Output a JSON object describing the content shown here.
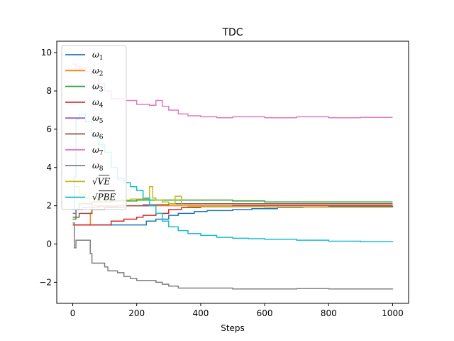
{
  "chart_data": {
    "type": "line",
    "title": "TDC",
    "xlabel": "Steps",
    "ylabel": "",
    "xlim": [
      -50,
      1050
    ],
    "ylim": [
      -3.1,
      10.6
    ],
    "xticks": [
      0,
      200,
      400,
      600,
      800,
      1000
    ],
    "yticks": [
      -2,
      0,
      2,
      4,
      6,
      8,
      10
    ],
    "xtick_labels": [
      "0",
      "200",
      "400",
      "600",
      "800",
      "1000"
    ],
    "ytick_labels": [
      "−2",
      "0",
      "2",
      "4",
      "6",
      "8",
      "10"
    ],
    "grid": false,
    "legend_position": "upper-left",
    "series": [
      {
        "name": "ω1",
        "legend": {
          "base": "ω",
          "sub": "1"
        },
        "color": "#1f77b4",
        "points": [
          [
            0,
            1.0
          ],
          [
            5,
            1.0
          ],
          [
            50,
            1.0
          ],
          [
            100,
            1.0
          ],
          [
            180,
            1.0
          ],
          [
            200,
            1.0
          ],
          [
            230,
            1.2
          ],
          [
            260,
            1.3
          ],
          [
            300,
            1.5
          ],
          [
            330,
            1.6
          ],
          [
            380,
            1.7
          ],
          [
            420,
            1.75
          ],
          [
            500,
            1.8
          ],
          [
            560,
            1.85
          ],
          [
            640,
            1.9
          ],
          [
            720,
            1.92
          ],
          [
            800,
            1.95
          ],
          [
            900,
            1.97
          ],
          [
            1000,
            2.0
          ]
        ]
      },
      {
        "name": "ω2",
        "legend": {
          "base": "ω",
          "sub": "2"
        },
        "color": "#ff7f0e",
        "points": [
          [
            0,
            1.0
          ],
          [
            50,
            1.0
          ],
          [
            55,
            1.6
          ],
          [
            60,
            2.0
          ],
          [
            120,
            2.0
          ],
          [
            200,
            2.0
          ],
          [
            300,
            2.0
          ],
          [
            400,
            2.0
          ],
          [
            500,
            2.0
          ],
          [
            600,
            2.0
          ],
          [
            700,
            2.0
          ],
          [
            800,
            2.0
          ],
          [
            900,
            2.0
          ],
          [
            1000,
            2.0
          ]
        ]
      },
      {
        "name": "ω3",
        "legend": {
          "base": "ω",
          "sub": "3"
        },
        "color": "#2ca02c",
        "points": [
          [
            0,
            1.3
          ],
          [
            10,
            1.8
          ],
          [
            20,
            2.1
          ],
          [
            60,
            2.2
          ],
          [
            120,
            2.25
          ],
          [
            200,
            2.3
          ],
          [
            300,
            2.3
          ],
          [
            400,
            2.3
          ],
          [
            500,
            2.25
          ],
          [
            600,
            2.2
          ],
          [
            700,
            2.2
          ],
          [
            800,
            2.2
          ],
          [
            900,
            2.2
          ],
          [
            1000,
            2.2
          ]
        ]
      },
      {
        "name": "ω4",
        "legend": {
          "base": "ω",
          "sub": "4"
        },
        "color": "#d62728",
        "points": [
          [
            0,
            1.0
          ],
          [
            20,
            1.0
          ],
          [
            60,
            1.0
          ],
          [
            100,
            1.0
          ],
          [
            120,
            1.2
          ],
          [
            160,
            1.3
          ],
          [
            200,
            1.4
          ],
          [
            220,
            1.5
          ],
          [
            260,
            1.6
          ],
          [
            300,
            1.8
          ],
          [
            340,
            1.9
          ],
          [
            400,
            1.95
          ],
          [
            500,
            2.0
          ],
          [
            600,
            2.0
          ],
          [
            700,
            2.0
          ],
          [
            800,
            2.0
          ],
          [
            900,
            2.0
          ],
          [
            1000,
            2.0
          ]
        ]
      },
      {
        "name": "ω5",
        "legend": {
          "base": "ω",
          "sub": "5"
        },
        "color": "#9467bd",
        "points": [
          [
            0,
            1.6
          ],
          [
            10,
            1.8
          ],
          [
            30,
            1.9
          ],
          [
            80,
            1.95
          ],
          [
            140,
            2.0
          ],
          [
            220,
            2.05
          ],
          [
            300,
            2.1
          ],
          [
            400,
            2.1
          ],
          [
            500,
            2.1
          ],
          [
            600,
            2.1
          ],
          [
            700,
            2.1
          ],
          [
            800,
            2.1
          ],
          [
            900,
            2.1
          ],
          [
            1000,
            2.1
          ]
        ]
      },
      {
        "name": "ω6",
        "legend": {
          "base": "ω",
          "sub": "6"
        },
        "color": "#8c564b",
        "points": [
          [
            0,
            1.4
          ],
          [
            20,
            1.6
          ],
          [
            60,
            1.8
          ],
          [
            100,
            1.9
          ],
          [
            160,
            2.0
          ],
          [
            240,
            2.05
          ],
          [
            300,
            2.1
          ],
          [
            400,
            2.1
          ],
          [
            500,
            2.1
          ],
          [
            600,
            2.1
          ],
          [
            700,
            2.1
          ],
          [
            800,
            2.1
          ],
          [
            900,
            2.1
          ],
          [
            1000,
            2.1
          ]
        ]
      },
      {
        "name": "ω7",
        "legend": {
          "base": "ω",
          "sub": "7"
        },
        "color": "#e377c2",
        "points": [
          [
            0,
            9.4
          ],
          [
            10,
            9.3
          ],
          [
            20,
            9.2
          ],
          [
            40,
            9.0
          ],
          [
            60,
            8.8
          ],
          [
            80,
            8.4
          ],
          [
            100,
            8.0
          ],
          [
            120,
            7.6
          ],
          [
            160,
            7.5
          ],
          [
            200,
            7.3
          ],
          [
            240,
            7.25
          ],
          [
            260,
            7.5
          ],
          [
            280,
            7.2
          ],
          [
            300,
            7.0
          ],
          [
            330,
            6.8
          ],
          [
            360,
            6.7
          ],
          [
            400,
            6.65
          ],
          [
            450,
            6.6
          ],
          [
            500,
            6.65
          ],
          [
            600,
            6.6
          ],
          [
            700,
            6.65
          ],
          [
            800,
            6.6
          ],
          [
            900,
            6.62
          ],
          [
            1000,
            6.62
          ]
        ]
      },
      {
        "name": "ω8",
        "legend": {
          "base": "ω",
          "sub": "8"
        },
        "color": "#7f7f7f",
        "points": [
          [
            0,
            1.1
          ],
          [
            5,
            -0.2
          ],
          [
            10,
            0.2
          ],
          [
            20,
            0.2
          ],
          [
            50,
            0.2
          ],
          [
            55,
            -0.5
          ],
          [
            60,
            -1.0
          ],
          [
            90,
            -1.0
          ],
          [
            100,
            -1.2
          ],
          [
            110,
            -1.4
          ],
          [
            140,
            -1.5
          ],
          [
            160,
            -1.7
          ],
          [
            180,
            -1.8
          ],
          [
            200,
            -1.9
          ],
          [
            240,
            -1.9
          ],
          [
            260,
            -2.0
          ],
          [
            280,
            -2.1
          ],
          [
            300,
            -2.2
          ],
          [
            330,
            -2.3
          ],
          [
            360,
            -2.3
          ],
          [
            400,
            -2.3
          ],
          [
            500,
            -2.35
          ],
          [
            600,
            -2.35
          ],
          [
            700,
            -2.33
          ],
          [
            800,
            -2.35
          ],
          [
            900,
            -2.35
          ],
          [
            1000,
            -2.33
          ]
        ]
      },
      {
        "name": "√VE",
        "legend": {
          "base": "VE",
          "sub": ""
        },
        "color": "#bcbd22",
        "points": [
          [
            0,
            3.4
          ],
          [
            5,
            3.0
          ],
          [
            20,
            2.6
          ],
          [
            40,
            2.4
          ],
          [
            60,
            2.4
          ],
          [
            100,
            2.3
          ],
          [
            140,
            2.3
          ],
          [
            180,
            2.35
          ],
          [
            200,
            2.35
          ],
          [
            230,
            2.35
          ],
          [
            240,
            3.0
          ],
          [
            250,
            2.4
          ],
          [
            260,
            2.3
          ],
          [
            280,
            2.2
          ],
          [
            300,
            2.1
          ],
          [
            320,
            2.5
          ],
          [
            340,
            2.0
          ],
          [
            360,
            1.95
          ],
          [
            400,
            1.95
          ],
          [
            450,
            1.95
          ],
          [
            500,
            1.95
          ],
          [
            600,
            1.92
          ],
          [
            700,
            1.92
          ],
          [
            800,
            1.92
          ],
          [
            900,
            1.92
          ],
          [
            1000,
            1.95
          ]
        ]
      },
      {
        "name": "√PBE",
        "legend": {
          "base": "PBE",
          "sub": ""
        },
        "color": "#17becf",
        "points": [
          [
            0,
            1.8
          ],
          [
            5,
            3.5
          ],
          [
            10,
            6.5
          ],
          [
            20,
            6.8
          ],
          [
            40,
            6.4
          ],
          [
            60,
            5.6
          ],
          [
            80,
            5.2
          ],
          [
            100,
            4.8
          ],
          [
            120,
            4.0
          ],
          [
            140,
            3.4
          ],
          [
            160,
            3.2
          ],
          [
            180,
            3.0
          ],
          [
            200,
            2.8
          ],
          [
            220,
            2.4
          ],
          [
            240,
            2.0
          ],
          [
            260,
            1.6
          ],
          [
            280,
            1.2
          ],
          [
            300,
            0.9
          ],
          [
            330,
            0.7
          ],
          [
            360,
            0.55
          ],
          [
            400,
            0.45
          ],
          [
            450,
            0.35
          ],
          [
            500,
            0.3
          ],
          [
            550,
            0.28
          ],
          [
            600,
            0.25
          ],
          [
            700,
            0.2
          ],
          [
            800,
            0.15
          ],
          [
            900,
            0.12
          ],
          [
            1000,
            0.1
          ]
        ]
      }
    ]
  }
}
